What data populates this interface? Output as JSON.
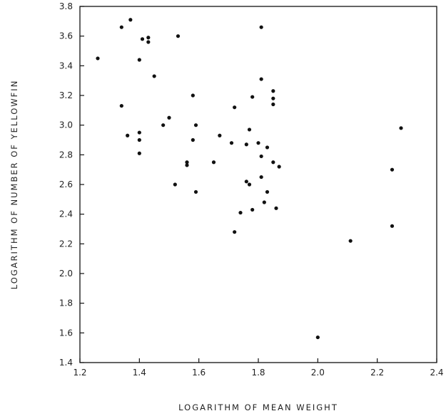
{
  "chart_data": {
    "type": "scatter",
    "title": "",
    "xlabel": "LOGARITHM OF MEAN WEIGHT",
    "ylabel": "LOGARITHM OF NUMBER OF YELLOWFIN",
    "xlim": [
      1.2,
      2.4
    ],
    "ylim": [
      1.4,
      3.8
    ],
    "x_ticks": [
      "1.2",
      "1.4",
      "1.6",
      "1.8",
      "2.0",
      "2.2",
      "2.4"
    ],
    "y_ticks": [
      "1.4",
      "1.6",
      "1.8",
      "2.0",
      "2.2",
      "2.4",
      "2.6",
      "2.8",
      "3.0",
      "3.2",
      "3.4",
      "3.6",
      "3.8"
    ],
    "grid": false,
    "legend": "none",
    "marker_color": "#111111",
    "points": [
      {
        "x": 1.26,
        "y": 3.45
      },
      {
        "x": 1.34,
        "y": 3.66
      },
      {
        "x": 1.37,
        "y": 3.71
      },
      {
        "x": 1.41,
        "y": 3.58
      },
      {
        "x": 1.43,
        "y": 3.59
      },
      {
        "x": 1.43,
        "y": 3.56
      },
      {
        "x": 1.53,
        "y": 3.6
      },
      {
        "x": 1.4,
        "y": 3.44
      },
      {
        "x": 1.45,
        "y": 3.33
      },
      {
        "x": 1.34,
        "y": 3.13
      },
      {
        "x": 1.36,
        "y": 2.93
      },
      {
        "x": 1.4,
        "y": 2.95
      },
      {
        "x": 1.4,
        "y": 2.9
      },
      {
        "x": 1.4,
        "y": 2.81
      },
      {
        "x": 1.48,
        "y": 3.0
      },
      {
        "x": 1.5,
        "y": 3.05
      },
      {
        "x": 1.52,
        "y": 2.6
      },
      {
        "x": 1.56,
        "y": 2.75
      },
      {
        "x": 1.56,
        "y": 2.73
      },
      {
        "x": 1.58,
        "y": 3.2
      },
      {
        "x": 1.58,
        "y": 2.9
      },
      {
        "x": 1.59,
        "y": 3.0
      },
      {
        "x": 1.59,
        "y": 2.55
      },
      {
        "x": 1.65,
        "y": 2.75
      },
      {
        "x": 1.67,
        "y": 2.93
      },
      {
        "x": 1.71,
        "y": 2.88
      },
      {
        "x": 1.72,
        "y": 3.12
      },
      {
        "x": 1.72,
        "y": 2.28
      },
      {
        "x": 1.74,
        "y": 2.41
      },
      {
        "x": 1.76,
        "y": 2.87
      },
      {
        "x": 1.76,
        "y": 2.62
      },
      {
        "x": 1.77,
        "y": 2.97
      },
      {
        "x": 1.77,
        "y": 2.6
      },
      {
        "x": 1.78,
        "y": 3.19
      },
      {
        "x": 1.78,
        "y": 2.43
      },
      {
        "x": 1.8,
        "y": 2.88
      },
      {
        "x": 1.81,
        "y": 3.31
      },
      {
        "x": 1.81,
        "y": 2.79
      },
      {
        "x": 1.81,
        "y": 2.65
      },
      {
        "x": 1.81,
        "y": 3.66
      },
      {
        "x": 1.82,
        "y": 2.48
      },
      {
        "x": 1.83,
        "y": 2.85
      },
      {
        "x": 1.83,
        "y": 2.55
      },
      {
        "x": 1.85,
        "y": 3.23
      },
      {
        "x": 1.85,
        "y": 3.18
      },
      {
        "x": 1.85,
        "y": 3.14
      },
      {
        "x": 1.85,
        "y": 2.75
      },
      {
        "x": 1.86,
        "y": 2.44
      },
      {
        "x": 1.87,
        "y": 2.72
      },
      {
        "x": 2.0,
        "y": 1.57
      },
      {
        "x": 2.11,
        "y": 2.22
      },
      {
        "x": 2.25,
        "y": 2.7
      },
      {
        "x": 2.25,
        "y": 2.32
      },
      {
        "x": 2.28,
        "y": 2.98
      }
    ]
  }
}
